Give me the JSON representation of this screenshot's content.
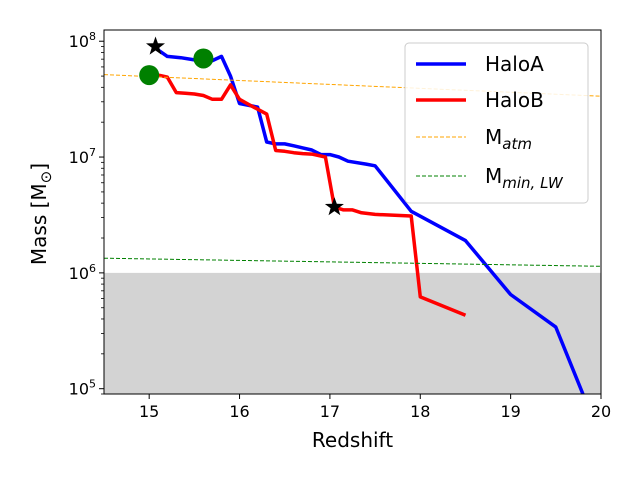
{
  "chart_data": {
    "type": "line",
    "xlabel": "Redshift",
    "ylabel_base": "Mass [M",
    "ylabel_sub": "⊙",
    "ylabel_close": "]",
    "yscale": "log",
    "xlim": [
      14.5,
      20
    ],
    "ylim": [
      90000,
      125000000
    ],
    "x_ticks": [
      15,
      16,
      17,
      18,
      19,
      20
    ],
    "y_ticks": [
      {
        "value": 100000,
        "base": "10",
        "exp": "5"
      },
      {
        "value": 1000000,
        "base": "10",
        "exp": "6"
      },
      {
        "value": 10000000,
        "base": "10",
        "exp": "7"
      },
      {
        "value": 100000000,
        "base": "10",
        "exp": "8"
      }
    ],
    "shaded_region": {
      "y_max": 1000000,
      "color": "#d3d3d3"
    },
    "series": [
      {
        "name": "HaloA",
        "color": "#0000ff",
        "style": "solid",
        "x": [
          15.05,
          15.1,
          15.2,
          15.35,
          15.5,
          15.6,
          15.7,
          15.8,
          15.9,
          16.0,
          16.2,
          16.3,
          16.4,
          16.5,
          16.6,
          16.7,
          16.8,
          16.9,
          17.0,
          17.1,
          17.2,
          17.4,
          17.5,
          17.9,
          18.5,
          19.0,
          19.5,
          19.8
        ],
        "y": [
          90000000,
          84000000,
          74000000,
          72000000,
          69000000,
          67000000,
          68000000,
          74000000,
          50000000,
          29000000,
          27000000,
          13500000,
          13000000,
          13000000,
          12500000,
          12000000,
          11500000,
          10500000,
          10500000,
          10000000,
          9200000,
          8700000,
          8400000,
          3400000,
          1900000,
          650000,
          340000,
          90000
        ]
      },
      {
        "name": "HaloB",
        "color": "#ff0000",
        "style": "solid",
        "x": [
          15.0,
          15.1,
          15.2,
          15.3,
          15.4,
          15.5,
          15.6,
          15.7,
          15.8,
          15.9,
          16.0,
          16.1,
          16.3,
          16.4,
          16.5,
          16.6,
          16.7,
          16.8,
          16.95,
          17.05,
          17.15,
          17.25,
          17.35,
          17.5,
          17.9,
          18.0,
          18.5
        ],
        "y": [
          51000000,
          51000000,
          49000000,
          36000000,
          35500000,
          35000000,
          34000000,
          31500000,
          31500000,
          42000000,
          31500000,
          28500000,
          23500000,
          11400000,
          11200000,
          10900000,
          10700000,
          10600000,
          10000000,
          3700000,
          3500000,
          3500000,
          3300000,
          3200000,
          3100000,
          620000,
          430000
        ]
      },
      {
        "name": "M",
        "legend_sub": "atm",
        "color": "#ffa500",
        "style": "dashed",
        "x": [
          14.5,
          20
        ],
        "y": [
          51500000,
          33500000
        ]
      },
      {
        "name": "M",
        "legend_sub": "min, LW",
        "color": "#008000",
        "style": "dashed",
        "x": [
          14.5,
          20
        ],
        "y": [
          1340000,
          1140000
        ]
      }
    ],
    "markers": [
      {
        "kind": "star",
        "color": "#000000",
        "x": 15.07,
        "y": 90000000
      },
      {
        "kind": "star",
        "color": "#000000",
        "x": 17.05,
        "y": 3700000
      },
      {
        "kind": "circle",
        "color": "#008000",
        "x": 15.0,
        "y": 51000000
      },
      {
        "kind": "circle",
        "color": "#008000",
        "x": 15.6,
        "y": 71000000
      }
    ],
    "legend_placement": "top-right",
    "grid": false
  }
}
